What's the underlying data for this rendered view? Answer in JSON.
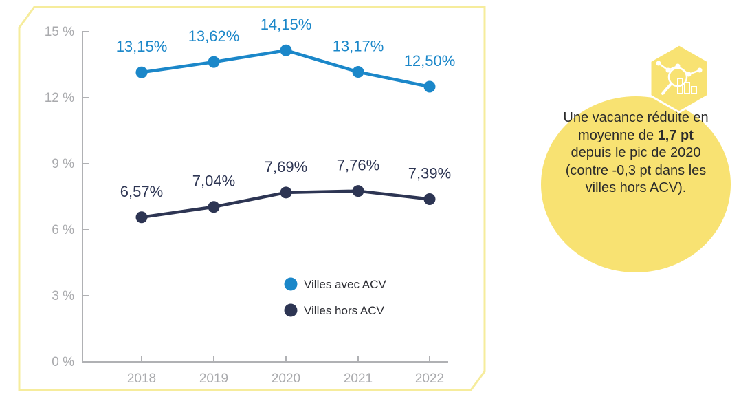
{
  "chart_data": {
    "type": "line",
    "categories": [
      "2018",
      "2019",
      "2020",
      "2021",
      "2022"
    ],
    "y_ticks": [
      "0 %",
      "3 %",
      "6 %",
      "9 %",
      "12 %",
      "15 %"
    ],
    "ylim": [
      0,
      15
    ],
    "grid": false,
    "legend_position": "bottom-right",
    "series": [
      {
        "name": "Villes avec ACV",
        "color": "#1b87c9",
        "values": [
          13.15,
          13.62,
          14.15,
          13.17,
          12.5
        ],
        "labels": [
          "13,15%",
          "13,62%",
          "14,15%",
          "13,17%",
          "12,50%"
        ]
      },
      {
        "name": "Villes hors ACV",
        "color": "#2d3553",
        "values": [
          6.57,
          7.04,
          7.69,
          7.76,
          7.39
        ],
        "labels": [
          "6,57%",
          "7,04%",
          "7,69%",
          "7,76%",
          "7,39%"
        ]
      }
    ]
  },
  "callout": {
    "text_before": "Une vacance réduite en moyenne de ",
    "highlight": "1,7 pt",
    "text_after": " depuis le pic de 2020 (contre -0,3 pt dans les villes hors ACV).",
    "color": "#f8e272"
  },
  "colors": {
    "frame": "#f6ec9c",
    "axis": "#b0b1b4"
  },
  "icon": "chart-hexagon-icon"
}
